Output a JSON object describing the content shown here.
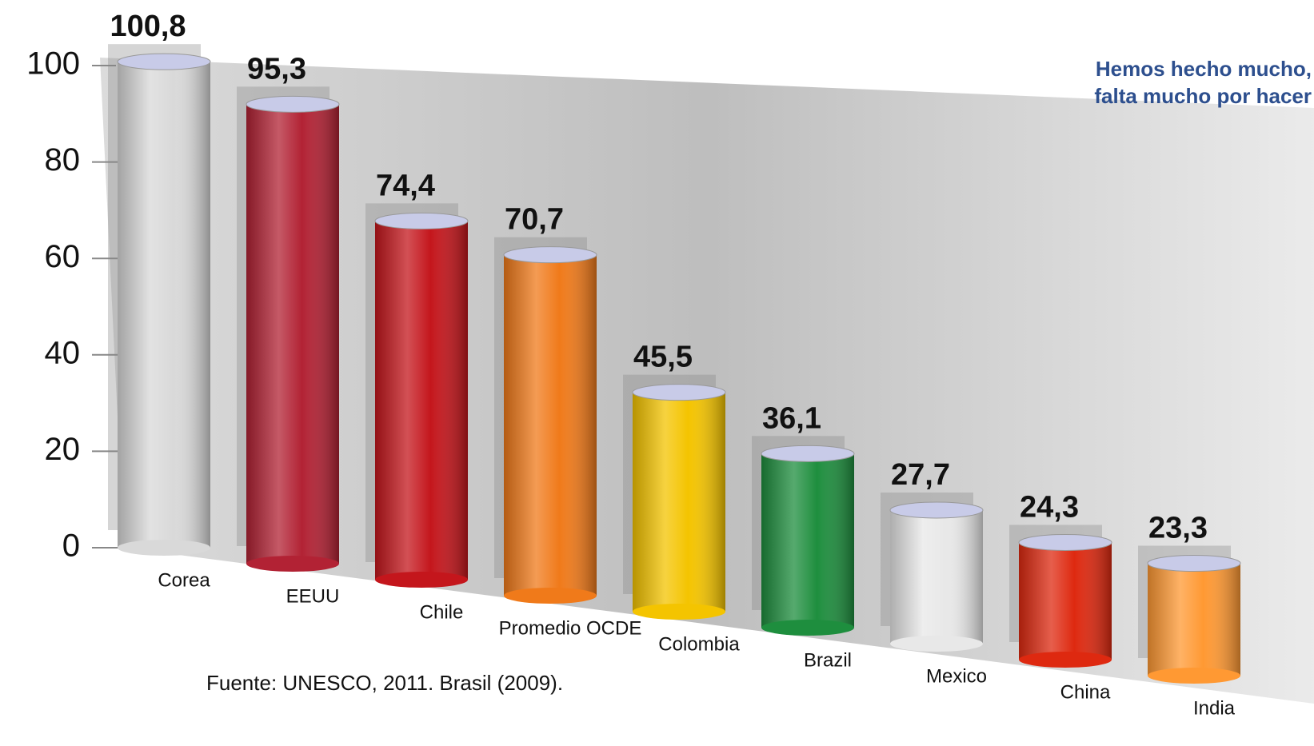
{
  "chart_data": {
    "type": "bar",
    "annotations": [
      "Hemos hecho mucho,",
      "falta mucho por hacer"
    ],
    "source": "Fuente: UNESCO, 2011. Brasil (2009).",
    "categories": [
      "Corea",
      "EEUU",
      "Chile",
      "Promedio OCDE",
      "Colombia",
      "Brazil",
      "Mexico",
      "China",
      "India"
    ],
    "values": [
      100.8,
      95.3,
      74.4,
      70.7,
      45.5,
      36.1,
      27.7,
      24.3,
      23.3
    ],
    "value_labels": [
      "100,8",
      "95,3",
      "74,4",
      "70,7",
      "45,5",
      "36,1",
      "27,7",
      "24,3",
      "23,3"
    ],
    "colors": [
      "#d9d9d9",
      "#b22234",
      "#c4161c",
      "#f07a1a",
      "#f4c400",
      "#1e8e3e",
      "#e8e8e8",
      "#de2910",
      "#ff9933"
    ],
    "ylim": [
      0,
      100
    ],
    "yticks": [
      0,
      20,
      40,
      60,
      80,
      100
    ]
  }
}
